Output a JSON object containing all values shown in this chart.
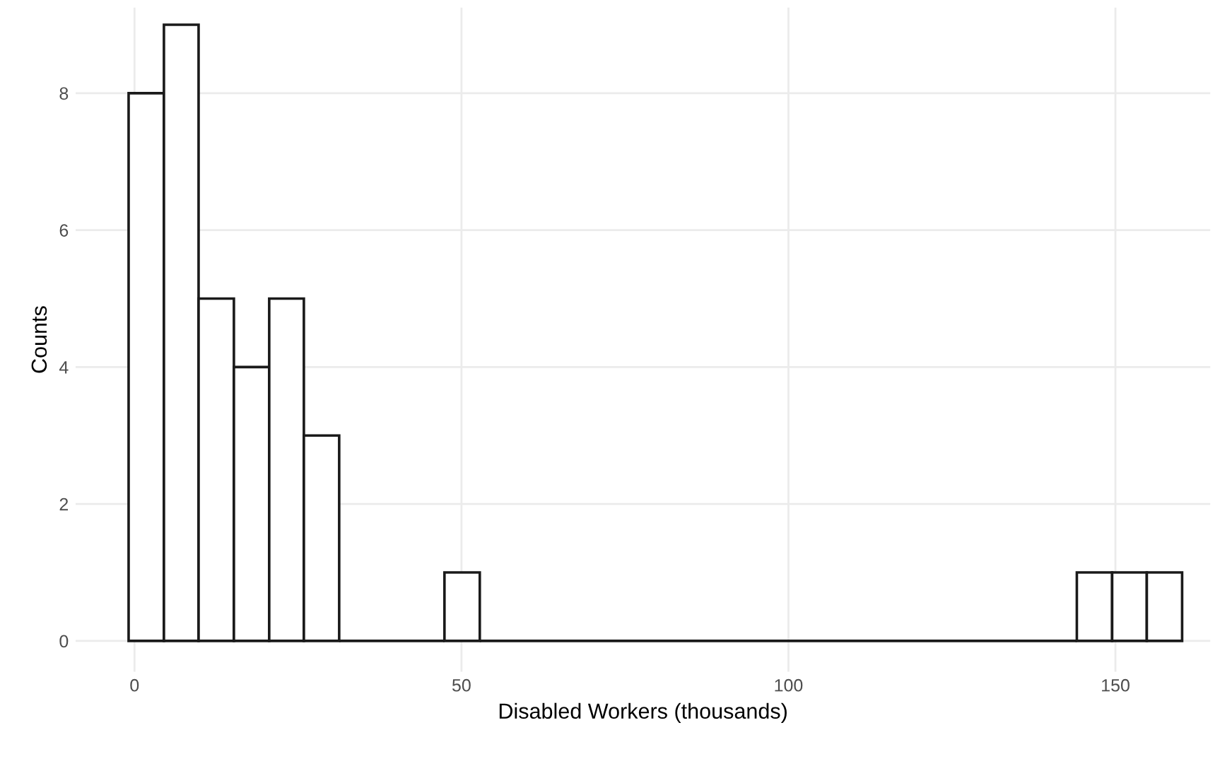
{
  "chart_data": {
    "type": "histogram",
    "xlabel": "Disabled Workers (thousands)",
    "ylabel": "Counts",
    "bins": [
      -0.9,
      4.5,
      9.8,
      15.2,
      20.6,
      25.9,
      31.3,
      47.4,
      52.8,
      144.1,
      149.5,
      154.8,
      160.2
    ],
    "values": [
      8,
      9,
      5,
      4,
      5,
      3,
      0,
      1,
      0,
      1,
      1,
      1
    ],
    "color": "#ffffff",
    "xlim": [
      -9,
      164.5
    ],
    "xticks": [
      0,
      50,
      100,
      150
    ],
    "ylim": [
      -0.45,
      9.25
    ],
    "yticks": [
      0,
      2,
      4,
      6,
      8
    ],
    "grid": true
  }
}
